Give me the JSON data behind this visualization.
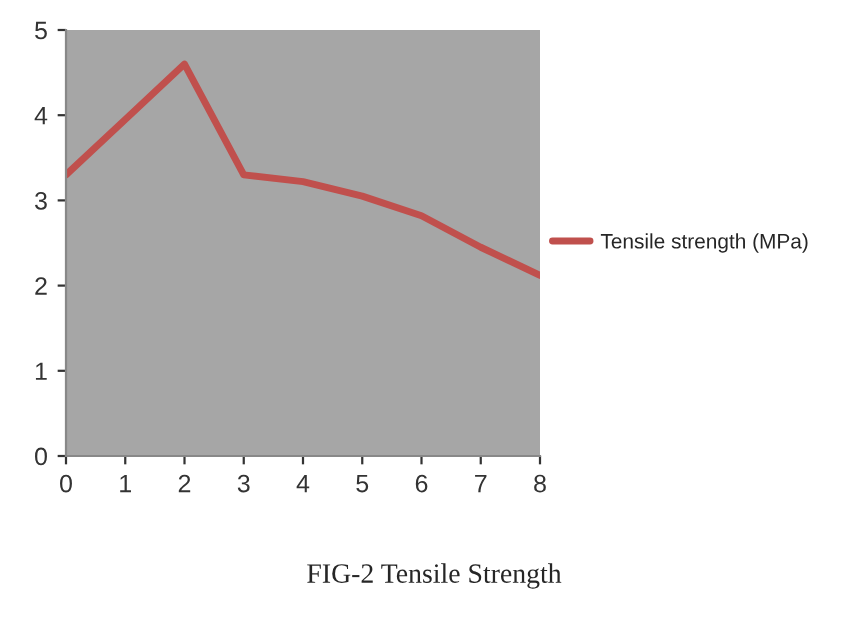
{
  "chart_data": {
    "type": "line",
    "x": [
      0,
      1,
      2,
      3,
      4,
      5,
      6,
      7,
      8
    ],
    "series": [
      {
        "name": "Tensile strength (MPa)",
        "color": "#c0504d",
        "values": [
          3.3,
          3.95,
          4.6,
          3.3,
          3.22,
          3.05,
          2.82,
          2.45,
          2.12
        ]
      }
    ],
    "xlim": [
      0,
      8
    ],
    "xticks": [
      0,
      1,
      2,
      3,
      4,
      5,
      6,
      7,
      8
    ],
    "ylim": [
      0,
      5
    ],
    "yticks": [
      0,
      1,
      2,
      3,
      4,
      5
    ],
    "grid": false,
    "legend": "right",
    "marker": "none",
    "line_style": "solid",
    "annotations": [
      "FIG-2 Tensile Strength"
    ]
  }
}
